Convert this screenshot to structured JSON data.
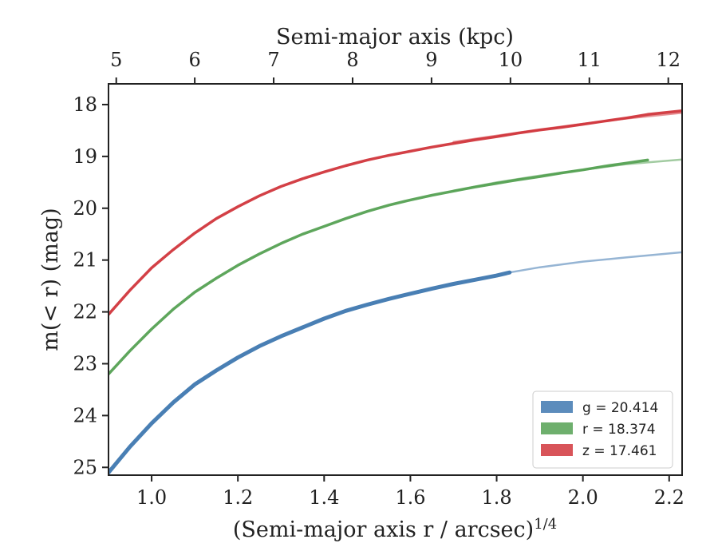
{
  "chart_data": {
    "type": "line",
    "xlabel": "(Semi-major axis r / arcsec)",
    "xlabel_sup": "1/4",
    "ylabel": "m(< r) (mag)",
    "top_xlabel": "Semi-major axis (kpc)",
    "xlim": [
      0.9,
      2.23
    ],
    "ylim": [
      25.15,
      17.6
    ],
    "y_inverted": true,
    "x_ticks": [
      "1.0",
      "1.2",
      "1.4",
      "1.6",
      "1.8",
      "2.0",
      "2.2"
    ],
    "y_ticks": [
      "18",
      "19",
      "20",
      "21",
      "22",
      "23",
      "24",
      "25"
    ],
    "top_x_ticks": [
      "5",
      "6",
      "7",
      "8",
      "9",
      "10",
      "11",
      "12"
    ],
    "top_x_tick_positions": [
      0.918,
      1.1,
      1.283,
      1.466,
      1.649,
      1.832,
      2.015,
      2.198
    ],
    "legend_position": "lower right",
    "grid": false,
    "series": [
      {
        "name": "g = 20.414",
        "color": "#3f78b0",
        "data_x": [
          0.9,
          0.95,
          1.0,
          1.05,
          1.1,
          1.15,
          1.2,
          1.25,
          1.3,
          1.35,
          1.4,
          1.45,
          1.5,
          1.55,
          1.6,
          1.65,
          1.7,
          1.75,
          1.8,
          1.83
        ],
        "data_y": [
          25.1,
          24.6,
          24.15,
          23.75,
          23.4,
          23.13,
          22.88,
          22.66,
          22.47,
          22.3,
          22.13,
          21.98,
          21.86,
          21.75,
          21.65,
          21.55,
          21.46,
          21.38,
          21.3,
          21.24
        ],
        "model_x": [
          1.83,
          1.9,
          2.0,
          2.1,
          2.23
        ],
        "model_y": [
          21.24,
          21.14,
          21.03,
          20.95,
          20.85
        ]
      },
      {
        "name": "r = 18.374",
        "color": "#55a153",
        "data_x": [
          0.9,
          0.95,
          1.0,
          1.05,
          1.1,
          1.15,
          1.2,
          1.25,
          1.3,
          1.35,
          1.4,
          1.45,
          1.5,
          1.55,
          1.6,
          1.65,
          1.7,
          1.75,
          1.8,
          1.85,
          1.9,
          1.95,
          2.0,
          2.05,
          2.1,
          2.15
        ],
        "data_y": [
          23.2,
          22.75,
          22.33,
          21.95,
          21.62,
          21.35,
          21.1,
          20.88,
          20.68,
          20.5,
          20.35,
          20.2,
          20.06,
          19.94,
          19.84,
          19.75,
          19.67,
          19.59,
          19.52,
          19.45,
          19.39,
          19.32,
          19.26,
          19.19,
          19.13,
          19.07
        ],
        "model_x": [
          1.7,
          1.8,
          1.9,
          2.0,
          2.1,
          2.23
        ],
        "model_y": [
          19.66,
          19.5,
          19.37,
          19.26,
          19.15,
          19.06
        ]
      },
      {
        "name": "z = 17.461",
        "color": "#d1363c",
        "data_x": [
          0.9,
          0.95,
          1.0,
          1.05,
          1.1,
          1.15,
          1.2,
          1.25,
          1.3,
          1.35,
          1.4,
          1.45,
          1.5,
          1.55,
          1.6,
          1.65,
          1.7,
          1.75,
          1.8,
          1.85,
          1.9,
          1.95,
          2.0,
          2.05,
          2.1,
          2.15,
          2.23
        ],
        "data_y": [
          22.05,
          21.58,
          21.15,
          20.8,
          20.48,
          20.2,
          19.97,
          19.76,
          19.58,
          19.43,
          19.3,
          19.18,
          19.07,
          18.98,
          18.9,
          18.82,
          18.75,
          18.68,
          18.62,
          18.55,
          18.49,
          18.44,
          18.38,
          18.32,
          18.26,
          18.19,
          18.12
        ],
        "model_x": [
          1.7,
          1.8,
          1.9,
          2.0,
          2.1,
          2.23
        ],
        "model_y": [
          18.72,
          18.6,
          18.48,
          18.37,
          18.27,
          18.16
        ]
      }
    ]
  }
}
